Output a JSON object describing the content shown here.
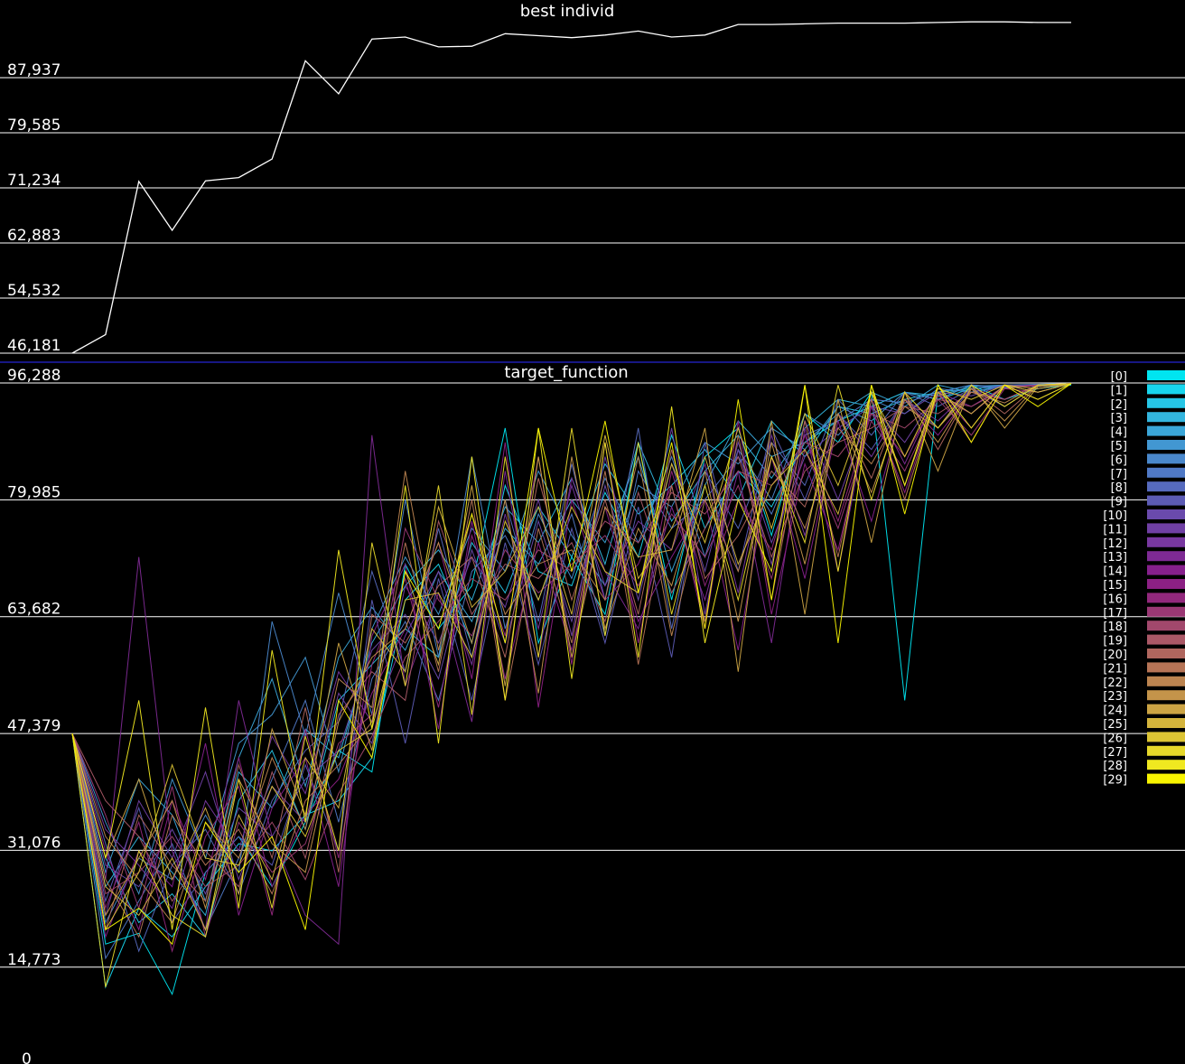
{
  "chart_data": [
    {
      "type": "line",
      "title": "best individ",
      "yticks": [
        "46,181",
        "54,532",
        "62,883",
        "71,234",
        "79,585",
        "87,937"
      ],
      "ylim": [
        46181,
        96288
      ],
      "grid": true,
      "series": [
        {
          "color": "#ffffff",
          "values": [
            46181,
            49000,
            72200,
            64800,
            72300,
            72800,
            75600,
            90500,
            85500,
            93800,
            94100,
            92600,
            92700,
            94600,
            94300,
            94000,
            94400,
            95000,
            94100,
            94400,
            96000,
            96000,
            96100,
            96200,
            96200,
            96200,
            96300,
            96400,
            96400,
            96300,
            96300
          ]
        }
      ]
    },
    {
      "type": "line",
      "title": "target_function",
      "yticks": [
        "0",
        "14,773",
        "31,076",
        "47,379",
        "63,682",
        "79,985",
        "96,288"
      ],
      "ylim": [
        0,
        96288
      ],
      "grid": true,
      "legend": "right",
      "legend_entries": [
        "[0]",
        "[1]",
        "[2]",
        "[3]",
        "[4]",
        "[5]",
        "[6]",
        "[7]",
        "[8]",
        "[9]",
        "[10]",
        "[11]",
        "[12]",
        "[13]",
        "[14]",
        "[15]",
        "[16]",
        "[17]",
        "[18]",
        "[19]",
        "[20]",
        "[21]",
        "[22]",
        "[23]",
        "[24]",
        "[25]",
        "[26]",
        "[27]",
        "[28]",
        "[29]"
      ],
      "series_colors": [
        "#00e5f0",
        "#18d6ee",
        "#26c6e6",
        "#33b5de",
        "#3aa6d8",
        "#4297d2",
        "#4a88cc",
        "#5079c6",
        "#566abe",
        "#5c5bb4",
        "#6a4aac",
        "#7040a4",
        "#7838a0",
        "#7e2a94",
        "#86208c",
        "#8c2084",
        "#92287c",
        "#9a3874",
        "#a2486c",
        "#aa5866",
        "#b0665e",
        "#b67456",
        "#bc8450",
        "#c4944a",
        "#cca444",
        "#d4b43c",
        "#dcc434",
        "#e6d82a",
        "#f0e820",
        "#f8f400"
      ],
      "series_values": [
        [
          47379,
          18000,
          19500,
          11000,
          28000,
          33000,
          26000,
          35000,
          45000,
          42000,
          71000,
          62000,
          68000,
          90000,
          60000,
          72000,
          64000,
          88000,
          66000,
          86000,
          90000,
          75000,
          92000,
          88000,
          95000,
          52000,
          95000,
          96000,
          94000,
          95500,
          96000
        ],
        [
          47379,
          12000,
          23000,
          19000,
          26000,
          32000,
          31000,
          36000,
          38000,
          44000,
          66000,
          71000,
          60000,
          82000,
          70000,
          68000,
          81000,
          72000,
          89000,
          76000,
          84000,
          79000,
          88000,
          91000,
          93000,
          95000,
          94000,
          95500,
          96000,
          95800,
          96100
        ],
        [
          47379,
          30000,
          21000,
          25000,
          19000,
          38000,
          45000,
          34000,
          52000,
          57000,
          62000,
          58000,
          74000,
          67000,
          79000,
          72000,
          85000,
          78000,
          82000,
          87000,
          80000,
          91000,
          86000,
          93000,
          92000,
          94000,
          95000,
          95500,
          95800,
          96000,
          96100
        ],
        [
          47379,
          26000,
          33000,
          28000,
          22000,
          42000,
          37000,
          48000,
          44000,
          60000,
          68000,
          73000,
          66000,
          79000,
          74000,
          83000,
          71000,
          88000,
          77000,
          84000,
          89000,
          83000,
          90000,
          94000,
          93000,
          95000,
          94500,
          95800,
          96000,
          95900,
          96200
        ],
        [
          47379,
          28000,
          41000,
          36000,
          24000,
          44000,
          55000,
          40000,
          58000,
          65000,
          59000,
          70000,
          63000,
          76000,
          71000,
          80000,
          74000,
          86000,
          70000,
          82000,
          91000,
          86000,
          88000,
          92000,
          95000,
          93000,
          96000,
          95000,
          95800,
          96100,
          96200
        ],
        [
          47379,
          35000,
          25000,
          41000,
          30000,
          46000,
          50000,
          58000,
          42000,
          62000,
          72000,
          64000,
          76000,
          70000,
          84000,
          75000,
          68000,
          82000,
          79000,
          88000,
          85000,
          90000,
          87000,
          93000,
          91000,
          95000,
          94000,
          96000,
          95700,
          96000,
          96200
        ],
        [
          47379,
          21000,
          30000,
          27000,
          36000,
          28000,
          63000,
          47000,
          67000,
          50000,
          80000,
          58000,
          86000,
          62000,
          78000,
          69000,
          83000,
          74000,
          86000,
          72000,
          87000,
          80000,
          92000,
          89000,
          94000,
          92000,
          95500,
          95000,
          96000,
          96100,
          96200
        ],
        [
          47379,
          16000,
          24000,
          32000,
          20000,
          30000,
          41000,
          52000,
          35000,
          55000,
          63000,
          52000,
          70000,
          75000,
          66000,
          78000,
          61000,
          84000,
          76000,
          80000,
          86000,
          78000,
          89000,
          91000,
          94000,
          93500,
          95000,
          96000,
          95600,
          96000,
          96200
        ],
        [
          47379,
          32000,
          17000,
          29000,
          34000,
          25000,
          38000,
          45000,
          49000,
          70000,
          56000,
          76000,
          58000,
          80000,
          63000,
          85000,
          66000,
          90000,
          62000,
          84000,
          76000,
          88000,
          82000,
          94000,
          89000,
          95000,
          93000,
          95500,
          96000,
          95000,
          96200
        ],
        [
          47379,
          24000,
          37000,
          21000,
          28000,
          33000,
          29000,
          43000,
          31000,
          66000,
          46000,
          69000,
          52000,
          74000,
          57000,
          76000,
          60000,
          79000,
          58000,
          88000,
          70000,
          90000,
          80000,
          92000,
          87000,
          94000,
          90000,
          95500,
          93000,
          96000,
          96200
        ],
        [
          47379,
          29000,
          26000,
          34000,
          25000,
          37000,
          33000,
          41000,
          45000,
          59000,
          64000,
          55000,
          73000,
          60000,
          77000,
          63000,
          82000,
          66000,
          85000,
          70000,
          88000,
          74000,
          86000,
          90000,
          93000,
          92000,
          95000,
          94500,
          96000,
          95800,
          96200
        ],
        [
          47379,
          22000,
          38000,
          30000,
          42000,
          27000,
          40000,
          35000,
          53000,
          46000,
          68000,
          60000,
          72000,
          65000,
          80000,
          61000,
          86000,
          67000,
          90000,
          64000,
          87000,
          71000,
          91000,
          80000,
          93000,
          88000,
          95000,
          92000,
          96000,
          95000,
          96200
        ],
        [
          47379,
          34000,
          29000,
          23000,
          38000,
          31000,
          47000,
          39000,
          56000,
          49000,
          61000,
          70000,
          57000,
          78000,
          62000,
          82000,
          68000,
          77000,
          73000,
          85000,
          67000,
          89000,
          75000,
          92000,
          86000,
          94000,
          91000,
          95500,
          94000,
          96000,
          96200
        ],
        [
          47379,
          27000,
          72000,
          31000,
          20000,
          52000,
          33000,
          22000,
          18000,
          89000,
          54000,
          67000,
          49000,
          84000,
          58000,
          83000,
          70000,
          62000,
          79000,
          66000,
          84000,
          60000,
          90000,
          70000,
          94000,
          85000,
          95000,
          93000,
          95800,
          96000,
          96200
        ],
        [
          47379,
          19000,
          31000,
          26000,
          46000,
          22000,
          37000,
          44000,
          26000,
          61000,
          71000,
          48000,
          77000,
          55000,
          74000,
          59000,
          79000,
          63000,
          72000,
          80000,
          59000,
          86000,
          69000,
          91000,
          77000,
          94000,
          89000,
          95000,
          94000,
          96000,
          96200
        ],
        [
          47379,
          31000,
          20000,
          38000,
          27000,
          44000,
          26000,
          36000,
          41000,
          53000,
          62000,
          74000,
          55000,
          88000,
          51000,
          80000,
          66000,
          71000,
          82000,
          62000,
          91000,
          64000,
          85000,
          73000,
          93000,
          81000,
          95000,
          90000,
          96000,
          95500,
          96200
        ],
        [
          47379,
          23000,
          35000,
          17000,
          33000,
          40000,
          22000,
          48000,
          30000,
          57000,
          69000,
          51000,
          75000,
          61000,
          86000,
          57000,
          88000,
          60000,
          84000,
          68000,
          80000,
          73000,
          89000,
          77000,
          92000,
          86000,
          94500,
          92000,
          95800,
          96000,
          96200
        ],
        [
          47379,
          36000,
          23000,
          40000,
          19000,
          35000,
          28000,
          32000,
          46000,
          50000,
          76000,
          66000,
          61000,
          73000,
          67000,
          71000,
          75000,
          68000,
          78000,
          72000,
          82000,
          69000,
          87000,
          76000,
          91000,
          84000,
          94000,
          89000,
          95500,
          95000,
          96200
        ],
        [
          47379,
          25000,
          28000,
          33000,
          26000,
          29000,
          35000,
          27000,
          39000,
          47000,
          58000,
          63000,
          69000,
          66000,
          73000,
          70000,
          77000,
          74000,
          81000,
          78000,
          84000,
          82000,
          88000,
          86000,
          92000,
          90000,
          94000,
          93000,
          95500,
          96000,
          96200
        ],
        [
          47379,
          38000,
          33000,
          24000,
          31000,
          26000,
          42000,
          30000,
          50000,
          56000,
          52000,
          77000,
          64000,
          71000,
          69000,
          74000,
          63000,
          81000,
          67000,
          76000,
          86000,
          72000,
          84000,
          88000,
          90000,
          93000,
          92000,
          95000,
          94000,
          96000,
          96200
        ],
        [
          47379,
          20000,
          36000,
          29000,
          24000,
          43000,
          30000,
          51000,
          28000,
          64000,
          60000,
          68000,
          72000,
          58000,
          83000,
          66000,
          80000,
          64000,
          87000,
          69000,
          75000,
          84000,
          79000,
          92000,
          83000,
          95000,
          87000,
          95500,
          92000,
          96000,
          96200
        ],
        [
          47379,
          27000,
          19000,
          36000,
          29000,
          34000,
          25000,
          38000,
          43000,
          49000,
          74000,
          56000,
          80000,
          52000,
          76000,
          60000,
          84000,
          57000,
          82000,
          63000,
          89000,
          66000,
          91000,
          72000,
          94000,
          80000,
          95000,
          88000,
          96000,
          94000,
          96200
        ],
        [
          47379,
          33000,
          27000,
          21000,
          35000,
          30000,
          44000,
          34000,
          55000,
          51000,
          84000,
          59000,
          78000,
          64000,
          71000,
          73000,
          66000,
          86000,
          61000,
          80000,
          70000,
          86000,
          76000,
          90000,
          85000,
          93000,
          90000,
          95000,
          93500,
          96000,
          96200
        ],
        [
          47379,
          22000,
          30000,
          38000,
          23000,
          41000,
          32000,
          28000,
          49000,
          58000,
          62000,
          74000,
          60000,
          80000,
          53000,
          86000,
          62000,
          76000,
          68000,
          84000,
          63000,
          88000,
          71000,
          92000,
          81000,
          94000,
          88000,
          95500,
          91000,
          96000,
          96200
        ],
        [
          47379,
          30000,
          41000,
          27000,
          37000,
          25000,
          48000,
          36000,
          60000,
          45000,
          70000,
          57000,
          82000,
          54000,
          86000,
          58000,
          79000,
          72000,
          73000,
          90000,
          56000,
          91000,
          64000,
          94000,
          74000,
          95000,
          84000,
          96000,
          90000,
          95800,
          96200
        ],
        [
          47379,
          26000,
          22000,
          30000,
          20000,
          36000,
          27000,
          44000,
          37000,
          62000,
          56000,
          79000,
          65000,
          70000,
          79000,
          64000,
          89000,
          69000,
          76000,
          86000,
          71000,
          82000,
          87000,
          78000,
          95000,
          82000,
          95000,
          92000,
          96000,
          95500,
          96200
        ],
        [
          47379,
          20000,
          28000,
          43000,
          30000,
          29000,
          40000,
          33000,
          45000,
          48000,
          66000,
          67000,
          58000,
          77000,
          66000,
          79000,
          70000,
          67000,
          85000,
          74000,
          90000,
          76000,
          92000,
          82000,
          95000,
          86000,
          95500,
          94000,
          96000,
          95000,
          96200
        ],
        [
          47379,
          12000,
          31000,
          22000,
          19000,
          41000,
          23000,
          47000,
          31000,
          74000,
          54000,
          82000,
          50000,
          86000,
          58000,
          90000,
          61000,
          88000,
          64000,
          82000,
          66000,
          86000,
          74000,
          96000,
          80000,
          95000,
          90000,
          96000,
          93000,
          96000,
          96200
        ],
        [
          47379,
          30000,
          52000,
          20000,
          51000,
          23000,
          59000,
          35000,
          73000,
          48000,
          82000,
          46000,
          86000,
          52000,
          90000,
          55000,
          88000,
          58000,
          93000,
          60000,
          80000,
          70000,
          96000,
          70000,
          96000,
          82000,
          96000,
          90000,
          96000,
          94000,
          96200
        ],
        [
          47379,
          20000,
          23000,
          18000,
          35000,
          28000,
          33000,
          20000,
          52000,
          44000,
          70000,
          62000,
          78000,
          60000,
          90000,
          70000,
          91000,
          67000,
          88000,
          62000,
          94000,
          66000,
          96000,
          60000,
          96000,
          78000,
          96000,
          88000,
          96000,
          93000,
          96200
        ]
      ]
    }
  ]
}
